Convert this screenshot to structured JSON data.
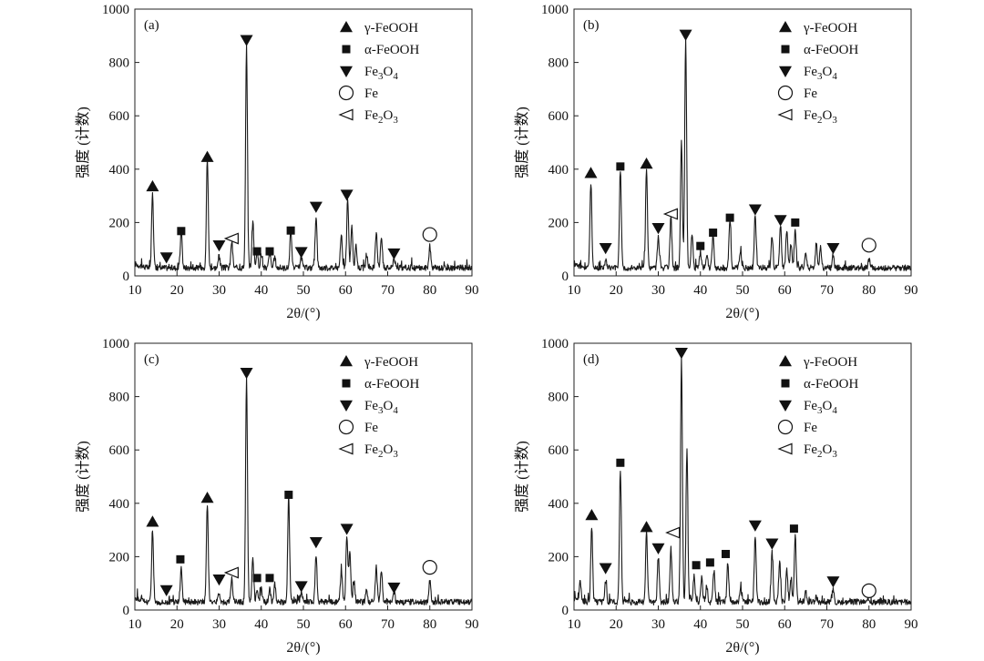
{
  "colors": {
    "line": "#1a1a1a",
    "marker": "#111111",
    "background": "#ffffff"
  },
  "legend": [
    {
      "marker": "triangle-up",
      "text": "γ-FeOOH"
    },
    {
      "marker": "square",
      "text": "α-FeOOH"
    },
    {
      "marker": "triangle-down",
      "text": "Fe3O4"
    },
    {
      "marker": "circle",
      "text": "Fe"
    },
    {
      "marker": "triangle-left",
      "text": "Fe2O3"
    }
  ],
  "chart_data": [
    {
      "type": "line",
      "panel_label": "(a)",
      "xlabel": "2θ/(°)",
      "ylabel": "强度 (计数)",
      "xlim": [
        10,
        90
      ],
      "ylim": [
        0,
        1000
      ],
      "xticks": [
        "10",
        "20",
        "30",
        "40",
        "50",
        "60",
        "70",
        "80",
        "90"
      ],
      "yticks": [
        "0",
        "200",
        "400",
        "600",
        "800",
        "1000"
      ],
      "baseline": 30,
      "peaks": [
        [
          14.2,
          310
        ],
        [
          21,
          170
        ],
        [
          27.2,
          440
        ],
        [
          30,
          70
        ],
        [
          33,
          130
        ],
        [
          36.5,
          860
        ],
        [
          38,
          200
        ],
        [
          39,
          95
        ],
        [
          40,
          80
        ],
        [
          42,
          90
        ],
        [
          43.2,
          70
        ],
        [
          47,
          165
        ],
        [
          49.5,
          70
        ],
        [
          53,
          225
        ],
        [
          59,
          150
        ],
        [
          60.5,
          285
        ],
        [
          61.5,
          180
        ],
        [
          62.5,
          110
        ],
        [
          65,
          80
        ],
        [
          67.3,
          160
        ],
        [
          68.5,
          150
        ],
        [
          71.5,
          70
        ],
        [
          80,
          110
        ]
      ],
      "markers": [
        {
          "phase": "triangle-up",
          "x": 14.2,
          "y": 335
        },
        {
          "phase": "triangle-up",
          "x": 27.2,
          "y": 445
        },
        {
          "phase": "square",
          "x": 21,
          "y": 168
        },
        {
          "phase": "square",
          "x": 39,
          "y": 92
        },
        {
          "phase": "square",
          "x": 42,
          "y": 92
        },
        {
          "phase": "square",
          "x": 47,
          "y": 170
        },
        {
          "phase": "triangle-down",
          "x": 17.5,
          "y": 70
        },
        {
          "phase": "triangle-down",
          "x": 30,
          "y": 115
        },
        {
          "phase": "triangle-down",
          "x": 36.5,
          "y": 885
        },
        {
          "phase": "triangle-down",
          "x": 49.5,
          "y": 90
        },
        {
          "phase": "triangle-down",
          "x": 53,
          "y": 260
        },
        {
          "phase": "triangle-down",
          "x": 60.3,
          "y": 305
        },
        {
          "phase": "triangle-down",
          "x": 71.5,
          "y": 85
        },
        {
          "phase": "circle",
          "x": 80,
          "y": 155
        },
        {
          "phase": "triangle-left",
          "x": 33,
          "y": 140
        }
      ]
    },
    {
      "type": "line",
      "panel_label": "(b)",
      "xlabel": "2θ/(°)",
      "ylabel": "强度 (计数)",
      "xlim": [
        10,
        90
      ],
      "ylim": [
        0,
        1000
      ],
      "xticks": [
        "10",
        "20",
        "30",
        "40",
        "50",
        "60",
        "70",
        "80",
        "90"
      ],
      "yticks": [
        "0",
        "200",
        "400",
        "600",
        "800",
        "1000"
      ],
      "baseline": 30,
      "peaks": [
        [
          14,
          350
        ],
        [
          17.5,
          60
        ],
        [
          21,
          400
        ],
        [
          27.2,
          400
        ],
        [
          30,
          150
        ],
        [
          33,
          220
        ],
        [
          35.5,
          500
        ],
        [
          36.5,
          880
        ],
        [
          38,
          160
        ],
        [
          40,
          90
        ],
        [
          41.5,
          80
        ],
        [
          43,
          150
        ],
        [
          47,
          210
        ],
        [
          49.5,
          90
        ],
        [
          53,
          230
        ],
        [
          57,
          150
        ],
        [
          59,
          190
        ],
        [
          60.5,
          170
        ],
        [
          61.5,
          120
        ],
        [
          62.5,
          180
        ],
        [
          65,
          80
        ],
        [
          67.5,
          120
        ],
        [
          68.5,
          110
        ],
        [
          71.5,
          80
        ],
        [
          80,
          60
        ],
        [
          84,
          30
        ]
      ],
      "markers": [
        {
          "phase": "triangle-up",
          "x": 14,
          "y": 385
        },
        {
          "phase": "triangle-up",
          "x": 27.2,
          "y": 420
        },
        {
          "phase": "square",
          "x": 21,
          "y": 410
        },
        {
          "phase": "square",
          "x": 40,
          "y": 112
        },
        {
          "phase": "square",
          "x": 43,
          "y": 162
        },
        {
          "phase": "square",
          "x": 47,
          "y": 218
        },
        {
          "phase": "square",
          "x": 62.5,
          "y": 200
        },
        {
          "phase": "triangle-down",
          "x": 17.5,
          "y": 105
        },
        {
          "phase": "triangle-down",
          "x": 30,
          "y": 180
        },
        {
          "phase": "triangle-down",
          "x": 36.5,
          "y": 905
        },
        {
          "phase": "triangle-down",
          "x": 53,
          "y": 250
        },
        {
          "phase": "triangle-down",
          "x": 59,
          "y": 210
        },
        {
          "phase": "triangle-down",
          "x": 71.5,
          "y": 105
        },
        {
          "phase": "circle",
          "x": 80,
          "y": 115
        },
        {
          "phase": "triangle-left",
          "x": 33,
          "y": 232
        }
      ]
    },
    {
      "type": "line",
      "panel_label": "(c)",
      "xlabel": "2θ/(°)",
      "ylabel": "强度 (计数)",
      "xlim": [
        10,
        90
      ],
      "ylim": [
        0,
        1000
      ],
      "xticks": [
        "10",
        "20",
        "30",
        "40",
        "50",
        "60",
        "70",
        "80",
        "90"
      ],
      "yticks": [
        "0",
        "200",
        "400",
        "600",
        "800",
        "1000"
      ],
      "baseline": 30,
      "peaks": [
        [
          14.2,
          300
        ],
        [
          21,
          160
        ],
        [
          27.2,
          400
        ],
        [
          30,
          70
        ],
        [
          33,
          120
        ],
        [
          36.5,
          870
        ],
        [
          38,
          200
        ],
        [
          39,
          80
        ],
        [
          40,
          80
        ],
        [
          42,
          80
        ],
        [
          43.2,
          100
        ],
        [
          46.5,
          420
        ],
        [
          49.5,
          70
        ],
        [
          53,
          210
        ],
        [
          59,
          150
        ],
        [
          60.3,
          280
        ],
        [
          61,
          220
        ],
        [
          62,
          110
        ],
        [
          65,
          80
        ],
        [
          67.3,
          160
        ],
        [
          68.5,
          150
        ],
        [
          71.5,
          70
        ],
        [
          80,
          110
        ]
      ],
      "markers": [
        {
          "phase": "triangle-up",
          "x": 14.2,
          "y": 330
        },
        {
          "phase": "triangle-up",
          "x": 27.2,
          "y": 420
        },
        {
          "phase": "square",
          "x": 20.8,
          "y": 190
        },
        {
          "phase": "square",
          "x": 39,
          "y": 120
        },
        {
          "phase": "square",
          "x": 42,
          "y": 120
        },
        {
          "phase": "square",
          "x": 46.5,
          "y": 432
        },
        {
          "phase": "triangle-down",
          "x": 17.5,
          "y": 75
        },
        {
          "phase": "triangle-down",
          "x": 30,
          "y": 115
        },
        {
          "phase": "triangle-down",
          "x": 36.5,
          "y": 890
        },
        {
          "phase": "triangle-down",
          "x": 49.5,
          "y": 90
        },
        {
          "phase": "triangle-down",
          "x": 53,
          "y": 255
        },
        {
          "phase": "triangle-down",
          "x": 60.3,
          "y": 305
        },
        {
          "phase": "triangle-down",
          "x": 71.5,
          "y": 85
        },
        {
          "phase": "circle",
          "x": 80,
          "y": 160
        },
        {
          "phase": "triangle-left",
          "x": 33,
          "y": 140
        }
      ]
    },
    {
      "type": "line",
      "panel_label": "(d)",
      "xlabel": "2θ/(°)",
      "ylabel": "强度 (计数)",
      "xlim": [
        10,
        90
      ],
      "ylim": [
        0,
        1000
      ],
      "xticks": [
        "10",
        "20",
        "30",
        "40",
        "50",
        "60",
        "70",
        "80",
        "90"
      ],
      "yticks": [
        "0",
        "200",
        "400",
        "600",
        "800",
        "1000"
      ],
      "baseline": 30,
      "peaks": [
        [
          11.5,
          100
        ],
        [
          14.2,
          310
        ],
        [
          17.5,
          110
        ],
        [
          21,
          530
        ],
        [
          27.2,
          290
        ],
        [
          30,
          200
        ],
        [
          33,
          230
        ],
        [
          35.5,
          940
        ],
        [
          36.8,
          600
        ],
        [
          38.5,
          130
        ],
        [
          40.3,
          120
        ],
        [
          41.5,
          90
        ],
        [
          43.2,
          150
        ],
        [
          46.5,
          180
        ],
        [
          49.5,
          80
        ],
        [
          53,
          280
        ],
        [
          57,
          220
        ],
        [
          58.8,
          180
        ],
        [
          60.5,
          150
        ],
        [
          61.5,
          110
        ],
        [
          62.5,
          280
        ],
        [
          65,
          70
        ],
        [
          67.5,
          50
        ],
        [
          71.5,
          80
        ],
        [
          80,
          40
        ]
      ],
      "markers": [
        {
          "phase": "triangle-up",
          "x": 14.2,
          "y": 355
        },
        {
          "phase": "triangle-up",
          "x": 27.2,
          "y": 310
        },
        {
          "phase": "square",
          "x": 21,
          "y": 552
        },
        {
          "phase": "square",
          "x": 39,
          "y": 168
        },
        {
          "phase": "square",
          "x": 42.3,
          "y": 178
        },
        {
          "phase": "square",
          "x": 46,
          "y": 210
        },
        {
          "phase": "square",
          "x": 62.2,
          "y": 305
        },
        {
          "phase": "triangle-down",
          "x": 17.5,
          "y": 158
        },
        {
          "phase": "triangle-down",
          "x": 30,
          "y": 232
        },
        {
          "phase": "triangle-down",
          "x": 35.5,
          "y": 965
        },
        {
          "phase": "triangle-down",
          "x": 53,
          "y": 318
        },
        {
          "phase": "triangle-down",
          "x": 57,
          "y": 250
        },
        {
          "phase": "triangle-down",
          "x": 71.5,
          "y": 108
        },
        {
          "phase": "circle",
          "x": 80,
          "y": 72
        },
        {
          "phase": "triangle-left",
          "x": 33.5,
          "y": 290
        }
      ]
    }
  ]
}
